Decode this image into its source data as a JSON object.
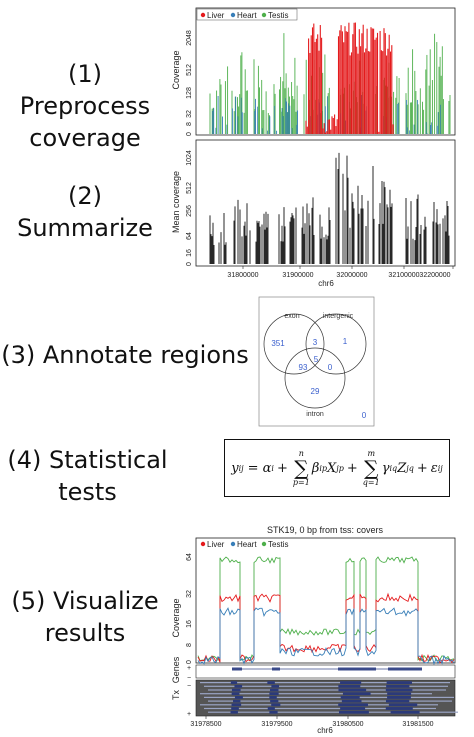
{
  "steps": {
    "s1": [
      "(1) Preprocess",
      "coverage"
    ],
    "s2": [
      "(2) Summarize"
    ],
    "s3": [
      "(3) Annotate regions"
    ],
    "s4": [
      "(4) Statistical",
      "tests"
    ],
    "s5": [
      "(5) Visualize",
      "results"
    ]
  },
  "colors": {
    "liver": "#e41a1c",
    "heart": "#377eb8",
    "testis": "#4daf4a",
    "black": "#111111"
  },
  "panel1": {
    "ylabel": "Coverage",
    "yticks": [
      "0",
      "8",
      "32",
      "128",
      "512",
      "2048"
    ],
    "legend": [
      "Liver",
      "Heart",
      "Testis"
    ]
  },
  "panel2": {
    "ylabel": "Mean coverage",
    "yticks": [
      "0",
      "16",
      "64",
      "256",
      "512",
      "1024"
    ],
    "xticks": [
      "31800000",
      "31900000",
      "32000000",
      "32100000",
      "32200000"
    ],
    "xlabel": "chr6"
  },
  "venn": {
    "labels": {
      "exon": "exon",
      "intergenic": "intergenic",
      "intron": "intron"
    },
    "counts": {
      "exon_only": "351",
      "exon_intergenic": "3",
      "intergenic_only": "1",
      "all": "5",
      "exon_intron": "93",
      "intergenic_intron": "0",
      "intron_only": "29",
      "none": "0"
    }
  },
  "equation": {
    "lhs": "y",
    "lhs_sub": "ij",
    "alpha": "= α",
    "alpha_sub": "i",
    "sum1_upper": "n",
    "sum1_lower": "p=1",
    "beta": "β",
    "beta_sub": "ip",
    "x": "X",
    "x_sub": "jp",
    "sum2_upper": "m",
    "sum2_lower": "q=1",
    "gamma": "γ",
    "gamma_sub": "iq",
    "z": "Z",
    "z_sub": "jq",
    "eps": "ε",
    "eps_sub": "ij",
    "plus": "+"
  },
  "panel5": {
    "title": "STK19, 0 bp from tss: covers",
    "ylabel": "Coverage",
    "yticks": [
      "0",
      "8",
      "16",
      "32",
      "64"
    ],
    "legend": [
      "Liver",
      "Heart",
      "Testis"
    ],
    "xticks": [
      "31978500",
      "31979500",
      "31980500",
      "31981500"
    ],
    "xlabel": "chr6",
    "tracks": [
      "Genes",
      "Tx"
    ],
    "strand_plus": "+",
    "strand_minus": "−"
  }
}
